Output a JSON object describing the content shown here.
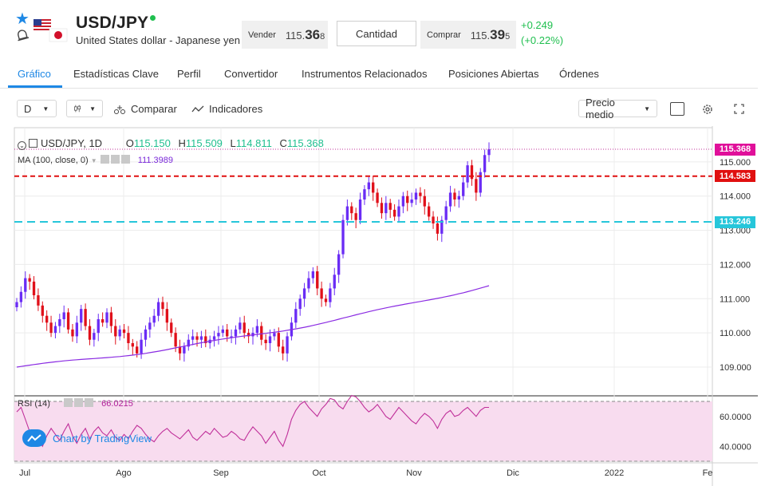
{
  "header": {
    "symbol": "USD/JPY",
    "description": "United States dollar - Japanese yen",
    "sell": {
      "label": "Vender",
      "price_main": "115.",
      "price_big": "36",
      "price_small": "8"
    },
    "qty_label": "Cantidad",
    "buy": {
      "label": "Comprar",
      "price_main": "115.",
      "price_big": "39",
      "price_small": "5"
    },
    "change_abs": "+0.249",
    "change_pct": "(+0.22%)",
    "icons": [
      "star-icon",
      "bell-icon",
      "usa-flag-icon",
      "japan-flag-icon",
      "status-dot"
    ],
    "colors": {
      "accent": "#1e88e5",
      "positive": "#1fbf4f"
    }
  },
  "tabs": [
    "Gráfico",
    "Estadísticas Clave",
    "Perfil",
    "Convertidor",
    "Instrumentos Relacionados",
    "Posiciones Abiertas",
    "Órdenes"
  ],
  "active_tab": "Gráfico",
  "toolbar": {
    "interval": "D",
    "compare_label": "Comparar",
    "indicators_label": "Indicadores",
    "price_mode": "Precio medio",
    "icons": [
      "candles-icon",
      "compare-icon",
      "indicators-icon",
      "checkbox-icon",
      "gear-icon",
      "fullscreen-icon"
    ]
  },
  "legend": {
    "symbol": "USD/JPY, 1D",
    "o_label": "O",
    "o": "115.150",
    "h_label": "H",
    "h": "115.509",
    "l_label": "L",
    "l": "114.811",
    "c_label": "C",
    "c": "115.368",
    "ma_label": "MA (100, close, 0)",
    "ma_value": "111.3989",
    "rsi_label": "RSI (14)",
    "rsi_value": "66.0215"
  },
  "watermark": "Chart by TradingView",
  "chart_data": {
    "type": "candlestick",
    "price_axis_ticks": [
      "115.000",
      "114.000",
      "113.000",
      "112.000",
      "111.000",
      "110.000",
      "109.000"
    ],
    "price_tags": [
      {
        "value": "115.368",
        "color": "#e0109a"
      },
      {
        "value": "114.583",
        "color": "#e01010"
      },
      {
        "value": "113.246",
        "color": "#26c6da"
      }
    ],
    "rsi_axis_ticks": [
      "60.0000",
      "40.0000"
    ],
    "time_axis_ticks": [
      "Jul",
      "Ago",
      "Sep",
      "Oct",
      "Nov",
      "Dic",
      "2022",
      "Fe"
    ],
    "ylim": [
      108.3,
      116.0
    ],
    "horizontal_lines": [
      {
        "value": 114.583,
        "style": "dashed",
        "color": "#e01010"
      },
      {
        "value": 113.246,
        "style": "dashed",
        "color": "#26c6da"
      }
    ],
    "colors": {
      "up": "#6a2cf5",
      "down": "#e0101a",
      "ma": "#8a2be2",
      "rsi": "#c0309a",
      "rsi_band": "#f8dcef"
    },
    "closes": [
      110.9,
      111.2,
      111.6,
      111.5,
      111.1,
      110.8,
      110.5,
      110.3,
      110.0,
      110.2,
      110.4,
      110.6,
      110.1,
      109.9,
      110.3,
      110.7,
      110.2,
      109.8,
      110.0,
      110.4,
      110.3,
      110.6,
      110.2,
      109.9,
      110.1,
      110.0,
      109.7,
      109.6,
      109.4,
      109.8,
      110.1,
      110.3,
      110.5,
      110.9,
      110.7,
      110.3,
      110.0,
      109.6,
      109.4,
      109.6,
      109.8,
      109.9,
      109.8,
      109.9,
      109.7,
      109.8,
      109.9,
      110.0,
      110.1,
      109.9,
      109.9,
      110.1,
      110.3,
      110.0,
      109.9,
      110.0,
      110.2,
      109.8,
      109.7,
      109.9,
      110.0,
      109.6,
      109.4,
      109.9,
      110.3,
      110.7,
      111.0,
      111.3,
      111.6,
      111.8,
      111.3,
      111.0,
      110.9,
      111.3,
      111.7,
      112.3,
      113.3,
      113.7,
      113.5,
      113.3,
      113.9,
      114.2,
      114.4,
      114.1,
      113.8,
      113.5,
      113.8,
      113.6,
      113.4,
      113.7,
      114.0,
      113.8,
      113.9,
      114.1,
      114.0,
      113.7,
      113.4,
      113.2,
      112.9,
      113.3,
      113.7,
      114.1,
      113.9,
      114.0,
      114.4,
      114.9,
      114.5,
      114.1,
      114.7,
      115.2,
      115.37
    ],
    "ma_values": {
      "start": 109.0,
      "end": 111.4
    },
    "rsi_values": [
      63,
      66,
      58,
      50,
      42,
      45,
      40,
      47,
      52,
      48,
      44,
      50,
      55,
      47,
      42,
      48,
      52,
      45,
      50,
      53,
      49,
      47,
      51,
      46,
      44,
      48,
      45,
      50,
      54,
      52,
      48,
      45,
      43,
      47,
      50,
      52,
      49,
      47,
      45,
      48,
      51,
      46,
      44,
      47,
      50,
      48,
      52,
      49,
      46,
      47,
      50,
      48,
      45,
      44,
      49,
      53,
      50,
      47,
      42,
      46,
      50,
      44,
      40,
      48,
      58,
      64,
      68,
      70,
      66,
      63,
      60,
      65,
      68,
      72,
      71,
      67,
      65,
      70,
      74,
      73,
      70,
      66,
      63,
      65,
      68,
      64,
      60,
      58,
      62,
      66,
      63,
      60,
      57,
      55,
      59,
      62,
      60,
      57,
      52,
      58,
      62,
      64,
      60,
      61,
      64,
      66,
      63,
      60,
      64,
      66,
      66.02
    ]
  }
}
